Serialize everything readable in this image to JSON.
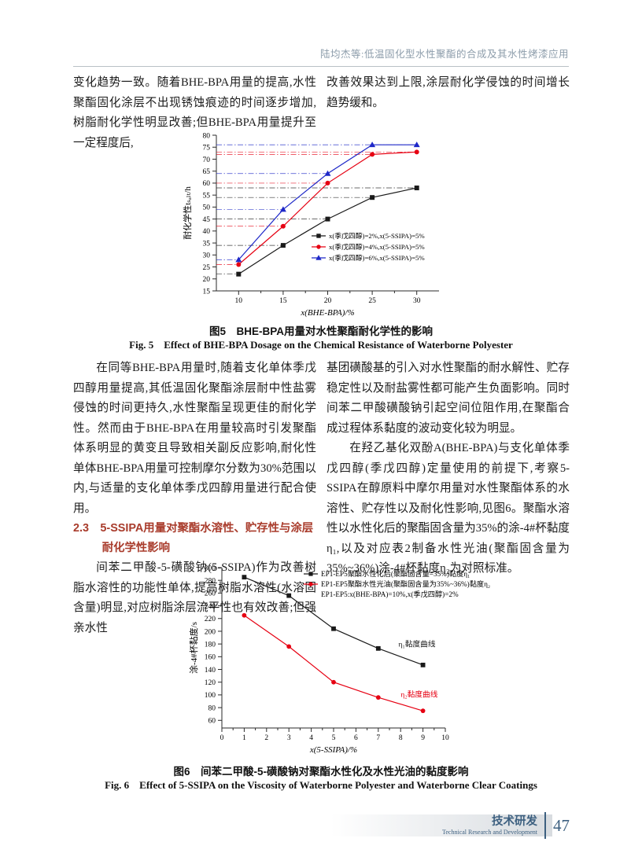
{
  "header": {
    "running_title": "陆均杰等:低温固化型水性聚酯的合成及其水性烤漆应用"
  },
  "body": {
    "top_left_p1": "变化趋势一致。随着BHE-BPA用量的提高,水性聚酯固化涂层不出现锈蚀痕迹的时间逐步增加,树脂耐化学性明显改善;但BHE-BPA用量提升至一定程度后,",
    "top_right_p1": "改善效果达到上限,涂层耐化学侵蚀的时间增长趋势缓和。",
    "mid_left_p1": "在同等BHE-BPA用量时,随着支化单体季戊四醇用量提高,其低温固化聚酯涂层耐中性盐雾侵蚀的时间更持久,水性聚酯呈现更佳的耐化学性。然而由于BHE-BPA在用量较高时引发聚酯体系明显的黄变且导致相关副反应影响,耐化性单体BHE-BPA用量可控制摩尔分数为30%范围以内,与适量的支化单体季戊四醇用量进行配合使用。",
    "section_heading": "2.3　5-SSIPA用量对聚酯水溶性、贮存性与涂层耐化学性影响",
    "mid_left_p2": "间苯二甲酸-5-磺酸钠(5-SSIPA)作为改善树脂水溶性的功能性单体,提高树脂水溶性(水溶固含量)明显,对应树脂涂层流平性也有效改善;但强亲水性",
    "mid_right_p1": "基团磺酸基的引入对水性聚酯的耐水解性、贮存稳定性以及耐盐雾性都可能产生负面影响。同时间苯二甲酸磺酸钠引起空间位阻作用,在聚酯合成过程体系黏度的波动变化较为明显。",
    "mid_right_p2": "在羟乙基化双酚A(BHE-BPA)与支化单体季戊四醇(季戊四醇)定量使用的前提下,考察5-SSIPA在醇原料中摩尔用量对水性聚酯体系的水溶性、贮存性以及耐化性影响,见图6。聚酯水溶性以水性化后的聚酯固含量为35%的涂-4#杯黏度η₁,以及对应表2制备水性光油(聚酯固含量为35%~36%)涂-4#杯黏度η₂为对照标准。"
  },
  "fig5": {
    "caption_cn": "图5　BHE-BPA用量对水性聚酯耐化学性的影响",
    "caption_en": "Fig. 5　Effect of BHE-BPA Dosage on the Chemical Resistance of Waterborne Polyester"
  },
  "fig6": {
    "caption_cn": "图6　间苯二甲酸-5-磺酸钠对聚酯水性化及水性光油的黏度影响",
    "caption_en": "Fig. 6　Effect of 5-SSIPA on the Viscosity of Waterborne Polyester and Waterborne Clear Coatings"
  },
  "footer": {
    "cn": "技术研发",
    "en": "Technical Research and Development",
    "page_number": "47",
    "accent_color": "#3d6080"
  },
  "colors": {
    "heading_red": "#a93c2c",
    "header_gray": "#8d9dab",
    "series_black": "#1a1a1a",
    "series_red": "#e60012",
    "series_blue": "#1e28c8"
  },
  "chart_data": [
    {
      "id": "fig5",
      "type": "line",
      "x": [
        10,
        15,
        20,
        25,
        30
      ],
      "series": [
        {
          "name": "x(季戊四醇)=2%,x(5-SSIPA)=5%",
          "color": "#1a1a1a",
          "marker": "square",
          "values": [
            22,
            34,
            45,
            54,
            58
          ]
        },
        {
          "name": "x(季戊四醇)=4%,x(5-SSIPA)=5%",
          "color": "#e60012",
          "marker": "circle",
          "values": [
            26,
            42,
            60,
            72,
            73
          ]
        },
        {
          "name": "x(季戊四醇)=6%,x(5-SSIPA)=5%",
          "color": "#1e28c8",
          "marker": "triangle",
          "values": [
            28,
            49,
            64,
            76,
            76
          ]
        }
      ],
      "xlabel": "x(BHE-BPA)/%",
      "ylabel": "耐化学性tₛₐₗₜ/h",
      "xlim": [
        7.5,
        32.5
      ],
      "ylim": [
        15,
        80
      ],
      "xticks": [
        10,
        15,
        20,
        25,
        30
      ],
      "yticks": [
        15,
        20,
        25,
        30,
        35,
        40,
        45,
        50,
        55,
        60,
        65,
        70,
        75,
        80
      ],
      "point_guides": true,
      "grid": false,
      "legend_position": "inside-right-lower"
    },
    {
      "id": "fig6",
      "type": "line",
      "x": [
        1,
        3,
        5,
        7,
        9
      ],
      "series": [
        {
          "name": "EP1-EP5聚酯水性化后(聚酯固含量=35%)黏度η₁",
          "color": "#1a1a1a",
          "marker": "square",
          "values": [
            285,
            256,
            204,
            173,
            147
          ]
        },
        {
          "name": "EP1-EP5聚酯水性光油(聚酯固含量为35%~36%)黏度η₂",
          "color": "#e60012",
          "marker": "circle",
          "values": [
            225,
            176,
            120,
            96,
            75
          ]
        }
      ],
      "legend_note": "EP1-EP5:x(BHE-BPA)=10%,x(季戊四醇)=2%",
      "annotations": [
        {
          "text": "η₁黏度曲线",
          "color": "#1a1a1a",
          "x": 7.9,
          "y": 176
        },
        {
          "text": "η₂黏度曲线",
          "color": "#e60012",
          "x": 8.0,
          "y": 97
        }
      ],
      "xlabel": "x(5-SSIPA)/%",
      "ylabel": "涂-4#杯黏度/s",
      "xlim": [
        0,
        10
      ],
      "ylim": [
        48,
        300
      ],
      "xticks": [
        0,
        1,
        2,
        3,
        4,
        5,
        6,
        7,
        8,
        9,
        10
      ],
      "yticks": [
        60,
        80,
        100,
        120,
        140,
        160,
        180,
        200,
        220,
        240,
        260,
        280,
        300
      ],
      "point_guides": false,
      "grid": false,
      "legend_position": "inside-top-right"
    }
  ]
}
